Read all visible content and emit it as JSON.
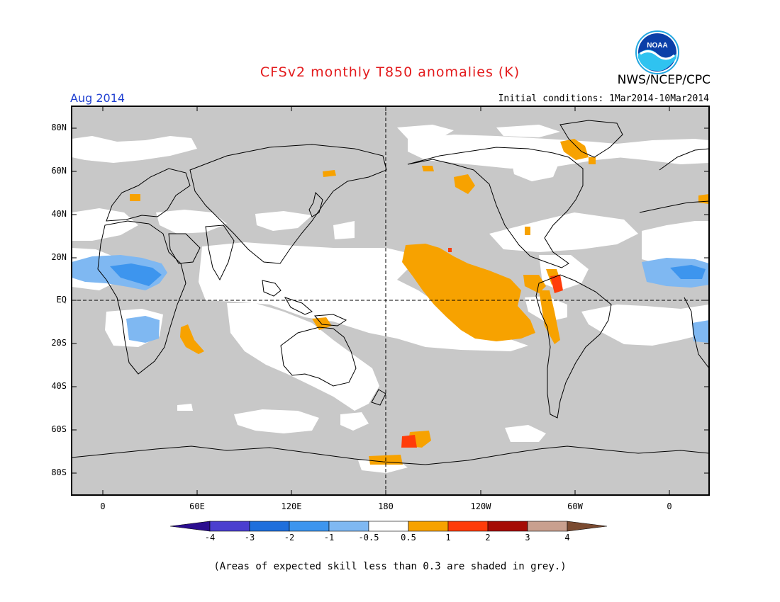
{
  "title": "CFSv2 monthly T850 anomalies (K)",
  "agency": "NWS/NCEP/CPC",
  "logo_text": "NOAA",
  "valid_month": "Aug 2014",
  "initial_conditions": "Initial conditions: 1Mar2014-10Mar2014",
  "lat_labels": [
    "80N",
    "60N",
    "40N",
    "20N",
    "EQ",
    "20S",
    "40S",
    "60S",
    "80S"
  ],
  "lon_labels": [
    "0",
    "60E",
    "120E",
    "180",
    "120W",
    "60W",
    "0"
  ],
  "colorbar": {
    "labels": [
      "-4",
      "-3",
      "-2",
      "-1",
      "-0.5",
      "0.5",
      "1",
      "2",
      "3",
      "4"
    ],
    "colors": [
      "#2b0e8f",
      "#4b3fcf",
      "#1f6fdc",
      "#3d95ee",
      "#7fb8f2",
      "#ffffff",
      "#f7a200",
      "#ff3c0a",
      "#a50c05",
      "#c9a08f",
      "#7a4a30"
    ]
  },
  "footnote": "(Areas of expected skill less than 0.3 are shaded in grey.)",
  "colors": {
    "skill_grey": "#c8c8c8",
    "title_red": "#e31a1c",
    "month_blue": "#1f3fd1"
  }
}
